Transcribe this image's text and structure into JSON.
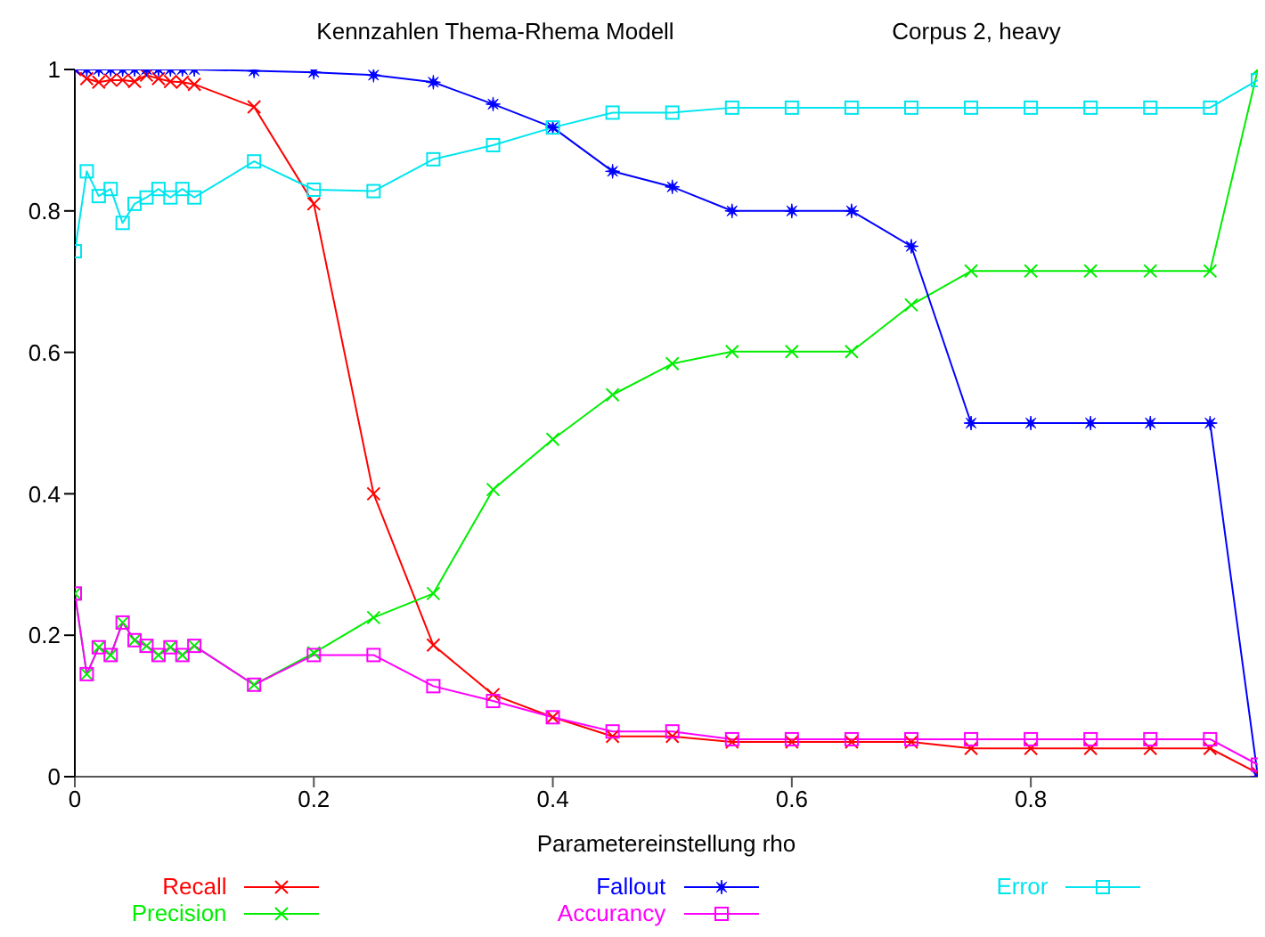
{
  "chart_data": {
    "type": "line",
    "title": "Kennzahlen Thema-Rhema Modell",
    "subtitle": "Corpus 2, heavy",
    "xlabel": "Parametereinstellung rho",
    "x": [
      0,
      0.01,
      0.02,
      0.03,
      0.04,
      0.05,
      0.06,
      0.07,
      0.08,
      0.09,
      0.1,
      0.15,
      0.2,
      0.25,
      0.3,
      0.35,
      0.4,
      0.45,
      0.5,
      0.55,
      0.6,
      0.65,
      0.7,
      0.75,
      0.8,
      0.85,
      0.9,
      0.95,
      0.99
    ],
    "series": [
      {
        "name": "Recall",
        "color": "#ff0000",
        "marker": "cross",
        "values": [
          1.0,
          0.987,
          0.982,
          0.985,
          0.985,
          0.983,
          0.992,
          0.987,
          0.983,
          0.982,
          0.979,
          0.947,
          0.81,
          0.4,
          0.186,
          0.116,
          0.084,
          0.057,
          0.057,
          0.049,
          0.049,
          0.049,
          0.049,
          0.04,
          0.04,
          0.04,
          0.04,
          0.04,
          0.005
        ]
      },
      {
        "name": "Precision",
        "color": "#00ee00",
        "marker": "cross",
        "values": [
          0.259,
          0.145,
          0.183,
          0.172,
          0.218,
          0.193,
          0.185,
          0.172,
          0.183,
          0.172,
          0.185,
          0.13,
          0.175,
          0.225,
          0.259,
          0.406,
          0.477,
          0.54,
          0.584,
          0.601,
          0.601,
          0.601,
          0.667,
          0.715,
          0.715,
          0.715,
          0.715,
          0.715,
          1.0
        ]
      },
      {
        "name": "Fallout",
        "color": "#0000ff",
        "marker": "star",
        "values": [
          1.0,
          1.0,
          1.0,
          1.0,
          1.0,
          1.0,
          1.0,
          1.0,
          1.0,
          1.0,
          1.0,
          0.998,
          0.996,
          0.992,
          0.982,
          0.951,
          0.918,
          0.856,
          0.834,
          0.8,
          0.8,
          0.8,
          0.75,
          0.5,
          0.5,
          0.5,
          0.5,
          0.5,
          0.0
        ]
      },
      {
        "name": "Accurancy",
        "color": "#ff00ff",
        "marker": "square",
        "values": [
          0.259,
          0.145,
          0.183,
          0.172,
          0.218,
          0.193,
          0.185,
          0.172,
          0.183,
          0.172,
          0.185,
          0.13,
          0.172,
          0.172,
          0.128,
          0.107,
          0.084,
          0.064,
          0.064,
          0.053,
          0.053,
          0.053,
          0.053,
          0.053,
          0.053,
          0.053,
          0.053,
          0.053,
          0.017
        ]
      },
      {
        "name": "Error",
        "color": "#00e5ee",
        "marker": "square",
        "values": [
          0.743,
          0.856,
          0.821,
          0.831,
          0.783,
          0.81,
          0.819,
          0.831,
          0.819,
          0.831,
          0.819,
          0.87,
          0.83,
          0.828,
          0.873,
          0.893,
          0.918,
          0.939,
          0.939,
          0.946,
          0.946,
          0.946,
          0.946,
          0.946,
          0.946,
          0.946,
          0.946,
          0.946,
          0.985
        ]
      }
    ],
    "xlim": [
      0,
      0.99
    ],
    "xticks": [
      0,
      0.2,
      0.4,
      0.6,
      0.8
    ],
    "ylim": [
      0,
      1
    ],
    "yticks": [
      0,
      0.2,
      0.4,
      0.6,
      0.8,
      1
    ],
    "grid": false,
    "legend": "bottom"
  }
}
